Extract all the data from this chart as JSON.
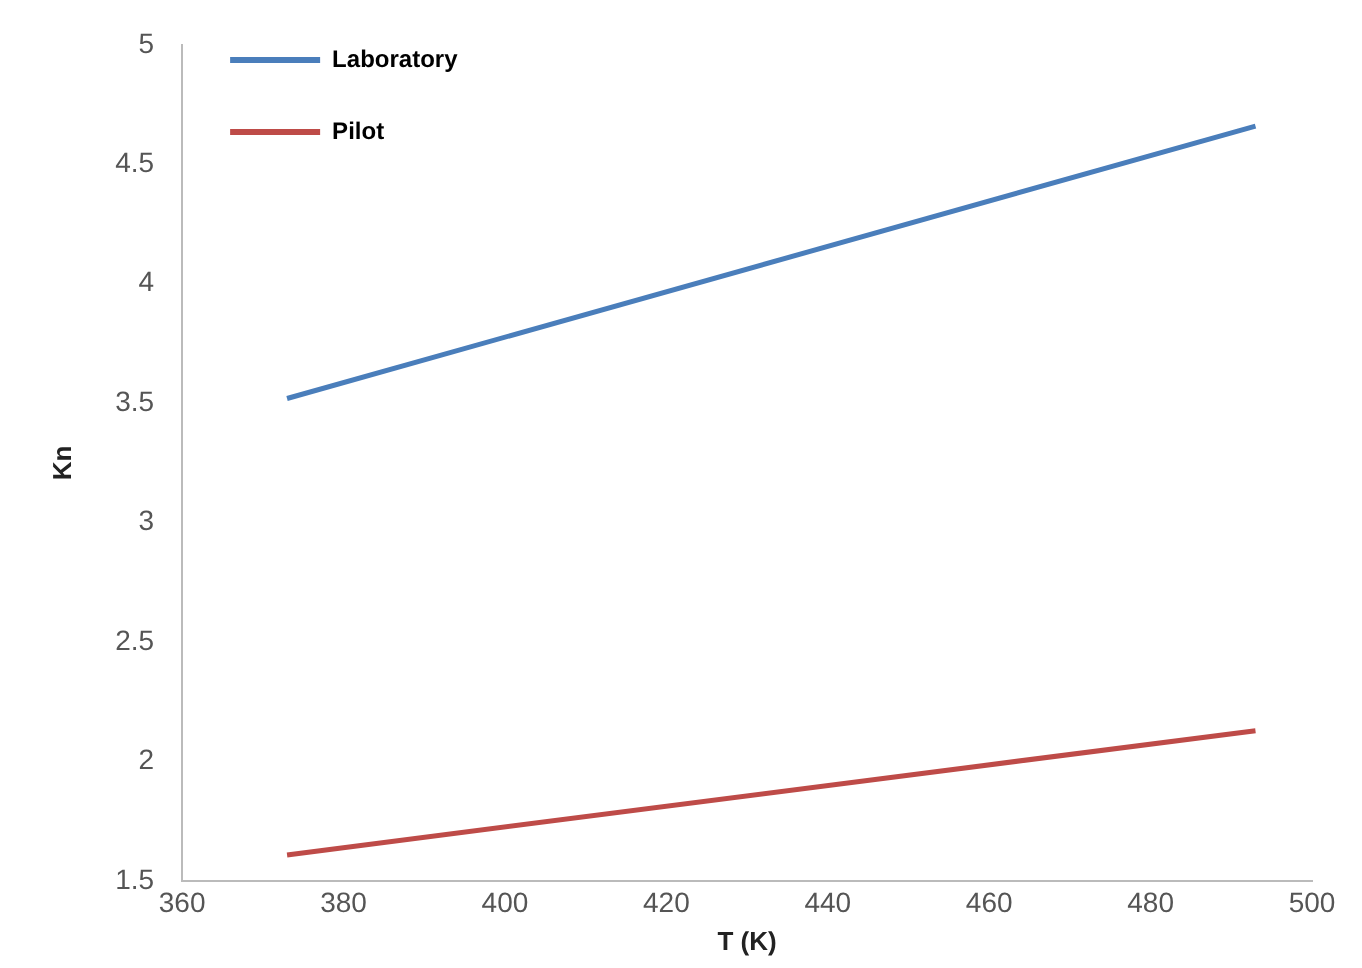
{
  "chart_data": {
    "type": "line",
    "xlabel": "T (K)",
    "ylabel": "Kn",
    "x": [
      373,
      493
    ],
    "series": [
      {
        "name": "Laboratory",
        "color": "#4a7ebb",
        "values": [
          3.52,
          4.66
        ]
      },
      {
        "name": "Pilot",
        "color": "#be4b48",
        "values": [
          1.61,
          2.13
        ]
      }
    ],
    "xlim": [
      360,
      500
    ],
    "xticks": [
      360,
      380,
      400,
      420,
      440,
      460,
      480,
      500
    ],
    "ylim": [
      1.5,
      5
    ],
    "yticks": [
      1.5,
      2,
      2.5,
      3,
      3.5,
      4,
      4.5,
      5
    ],
    "grid": false,
    "legend": "top left",
    "marker": "none",
    "line_style": "solid"
  }
}
